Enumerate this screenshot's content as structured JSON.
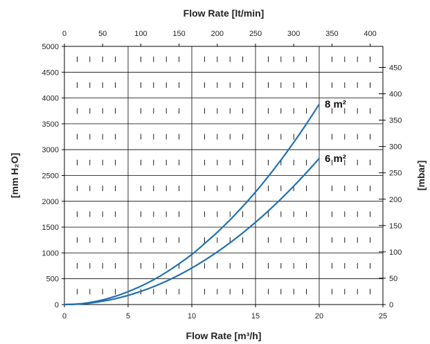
{
  "chart_data": {
    "type": "line",
    "title": "",
    "xlabel": "Flow Rate [m³/h]",
    "top_xlabel": "Flow Rate [lt/min]",
    "ylabel": "[mm H₂O]",
    "right_ylabel": "[mbar]",
    "xlim": [
      0,
      25
    ],
    "ylim": [
      0,
      5000
    ],
    "top_xlim": [
      0,
      416.67
    ],
    "right_ylim": [
      0,
      490
    ],
    "x_ticks": [
      "0",
      "5",
      "10",
      "15",
      "20",
      "25"
    ],
    "y_ticks": [
      "0",
      "500",
      "1000",
      "1500",
      "2000",
      "2500",
      "3000",
      "3500",
      "4000",
      "4500",
      "5000"
    ],
    "top_x_ticks": [
      "0",
      "50",
      "100",
      "150",
      "200",
      "250",
      "300",
      "350",
      "400"
    ],
    "right_y_ticks": [
      "0",
      "50",
      "100",
      "150",
      "200",
      "250",
      "300",
      "350",
      "400",
      "450"
    ],
    "grid": true,
    "series_color": "#1f6fb2",
    "series": [
      {
        "name": "8 m²",
        "x": [
          0,
          1,
          2,
          3,
          4,
          5,
          6,
          7,
          8,
          9,
          10,
          11,
          12,
          13,
          14,
          15,
          16,
          17,
          18,
          19,
          20
        ],
        "values": [
          0,
          10,
          40,
          90,
          160,
          250,
          355,
          480,
          625,
          790,
          970,
          1180,
          1400,
          1640,
          1900,
          2180,
          2480,
          2800,
          3140,
          3500,
          3880
        ]
      },
      {
        "name": "6 m²",
        "x": [
          0,
          1,
          2,
          3,
          4,
          5,
          6,
          7,
          8,
          9,
          10,
          11,
          12,
          13,
          14,
          15,
          16,
          17,
          18,
          19,
          20
        ],
        "values": [
          0,
          7,
          28,
          64,
          113,
          177,
          255,
          347,
          453,
          573,
          708,
          857,
          1020,
          1197,
          1388,
          1593,
          1812,
          2046,
          2294,
          2556,
          2830
        ]
      }
    ]
  }
}
